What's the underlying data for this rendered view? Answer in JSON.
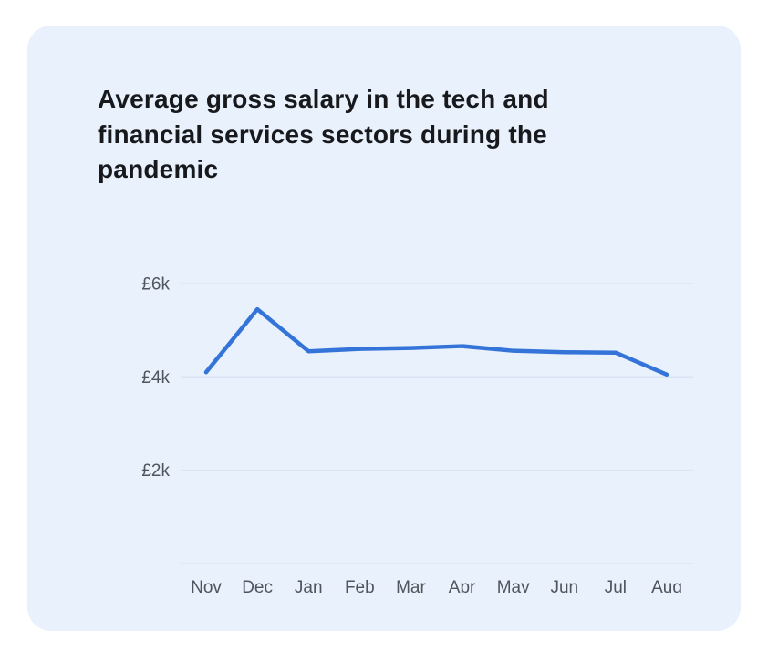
{
  "card": {
    "background": "#e9f1fc"
  },
  "chart_data": {
    "type": "line",
    "title": "Average gross salary in the tech and financial services sectors during the pandemic",
    "categories": [
      "Nov",
      "Dec",
      "Jan",
      "Feb",
      "Mar",
      "Apr",
      "May",
      "Jun",
      "Jul",
      "Aug"
    ],
    "series": [
      {
        "name": "Average gross salary",
        "values": [
          4100,
          5450,
          4550,
          4600,
          4620,
          4660,
          4560,
          4530,
          4520,
          4050
        ]
      }
    ],
    "currency": "£",
    "yticks": [
      {
        "value": 6000,
        "label": "£6k"
      },
      {
        "value": 4000,
        "label": "£4k"
      },
      {
        "value": 2000,
        "label": "£2k"
      },
      {
        "value": 0,
        "label": ""
      }
    ],
    "ylim": [
      0,
      6450
    ],
    "grid": true,
    "legend_position": "none",
    "line_color": "#3474d9",
    "grid_color": "#d9e5f4",
    "tick_label_color": "#50555d"
  }
}
